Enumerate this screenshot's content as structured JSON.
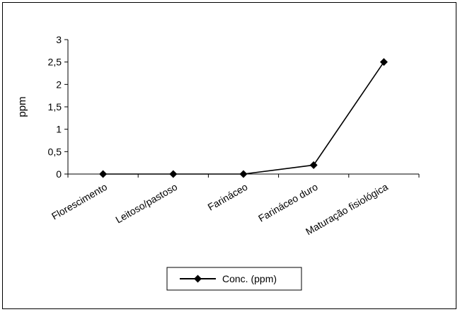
{
  "chart_data": {
    "type": "line",
    "title": "",
    "xlabel": "",
    "ylabel": "ppm",
    "categories": [
      "Florescimento",
      "Leitoso/pastoso",
      "Farináceo",
      "Farináceo duro",
      "Maturação fisiológica"
    ],
    "series": [
      {
        "name": "Conc. (ppm)",
        "values": [
          0,
          0,
          0,
          0.2,
          2.5
        ],
        "marker": "diamond",
        "color": "#000000"
      }
    ],
    "ylim": [
      0,
      3
    ],
    "yticks": [
      0,
      0.5,
      1,
      1.5,
      2,
      2.5,
      3
    ],
    "ytick_labels": [
      "0",
      "0,5",
      "1",
      "1,5",
      "2",
      "2,5",
      "3"
    ],
    "grid": false,
    "legend_position": "bottom"
  }
}
